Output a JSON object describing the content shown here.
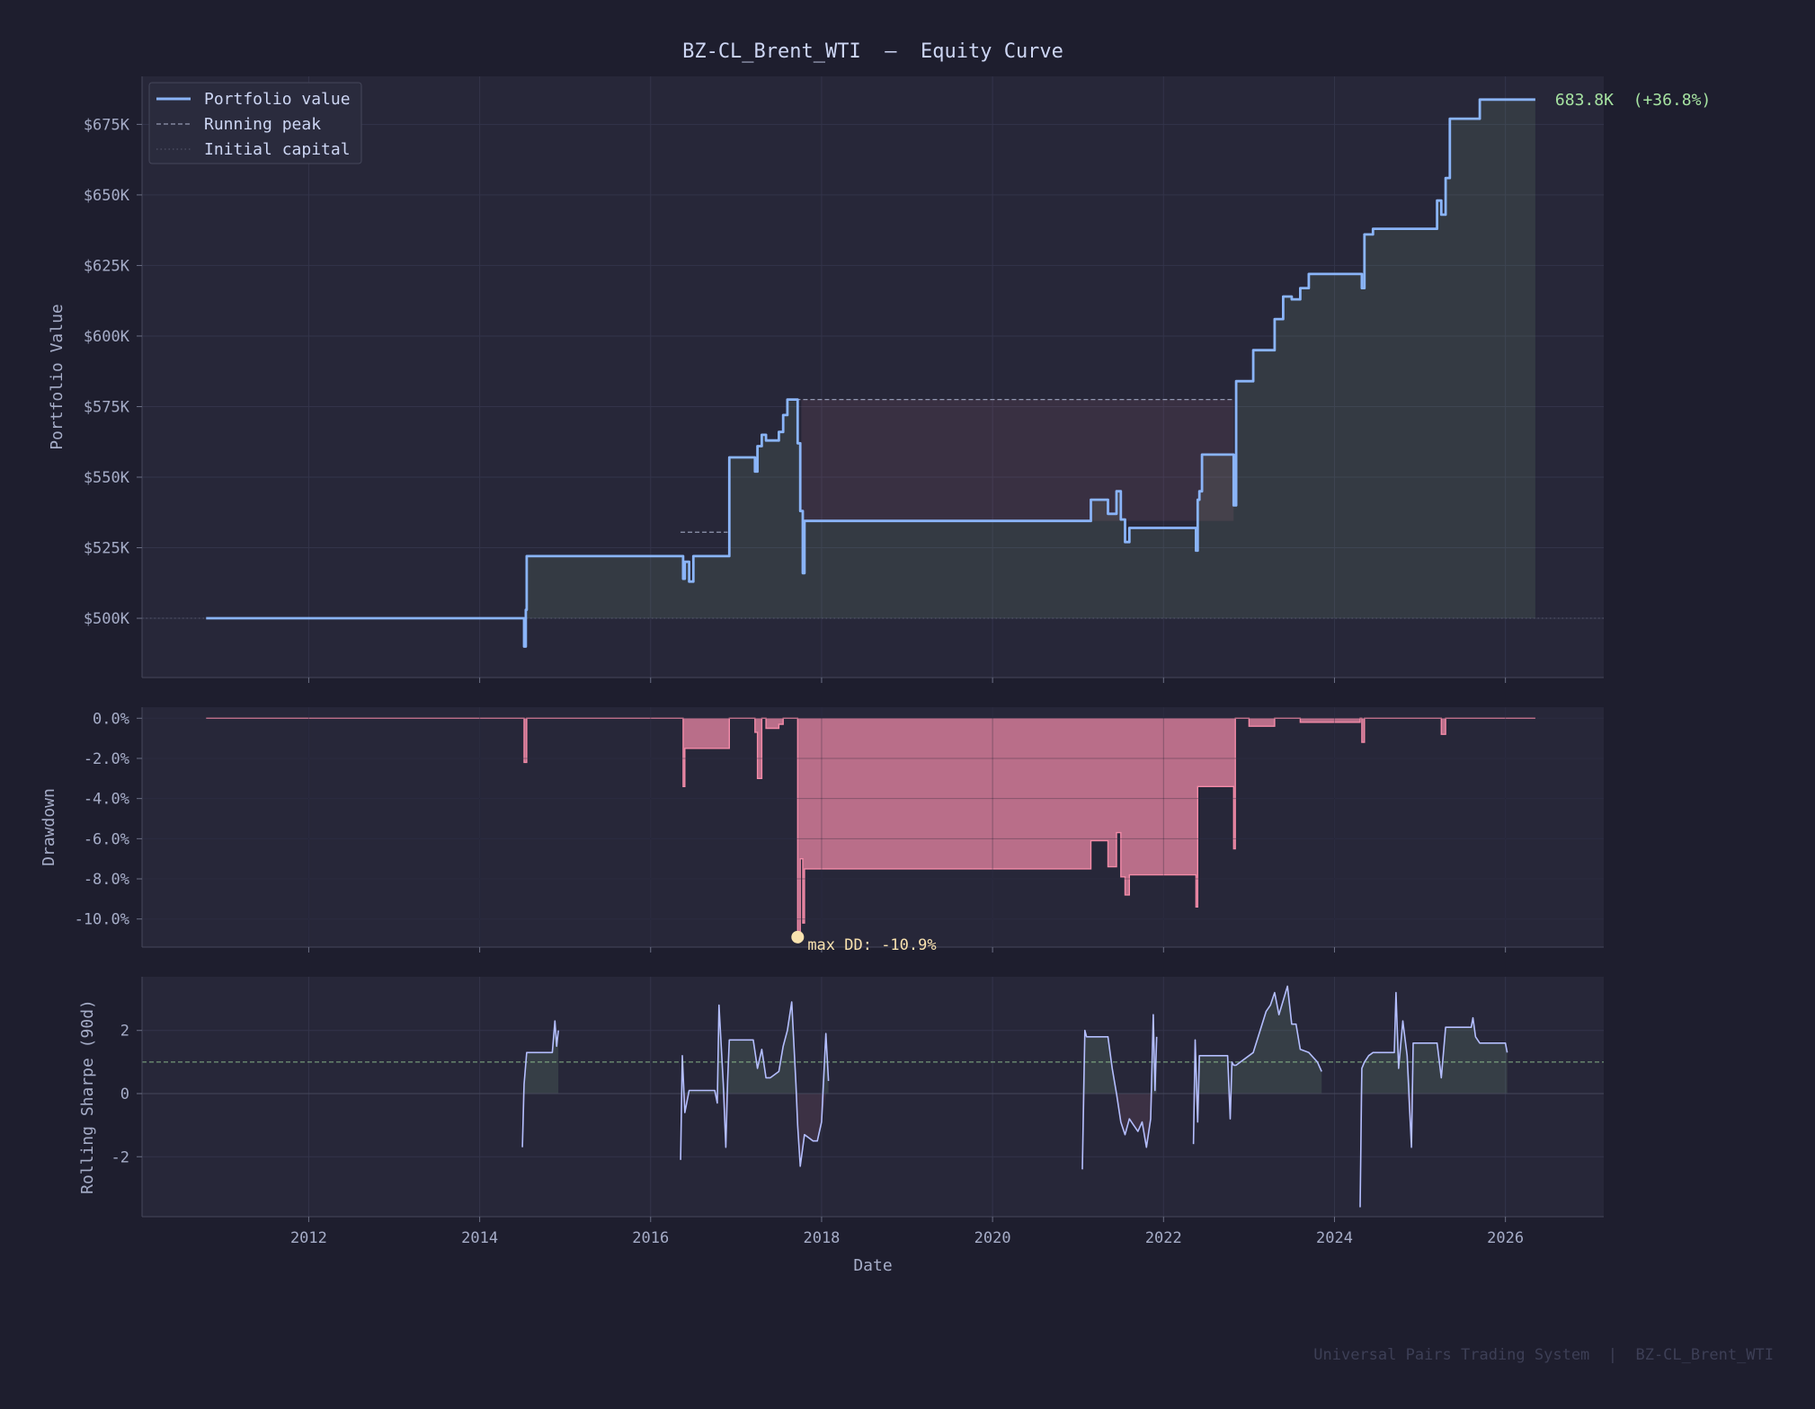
{
  "title": "BZ-CL_Brent_WTI  —  Equity Curve",
  "footer": "Universal Pairs Trading System  |  BZ-CL_Brent_WTI",
  "colors": {
    "background": "#1e1e2e",
    "panel": "#272739",
    "equity_line": "#8ab4f8",
    "drawdown": "#f38ba8",
    "sharpe_line": "#b4befe",
    "positive_label": "#a6e3a1",
    "annotation": "#f9e2af",
    "text": "#cdd6f4",
    "muted": "#a6adc8"
  },
  "chart_data": [
    {
      "type": "line",
      "panel": "equity",
      "ylabel": "Portfolio Value",
      "ylim": [
        479000,
        692000
      ],
      "yticks": [
        500000,
        525000,
        550000,
        575000,
        600000,
        625000,
        650000,
        675000
      ],
      "ytick_labels": [
        "$500K",
        "$525K",
        "$550K",
        "$575K",
        "$600K",
        "$625K",
        "$650K",
        "$675K"
      ],
      "legend": [
        "Portfolio value",
        "Running peak",
        "Initial capital"
      ],
      "legend_position": "top-left",
      "initial_capital": 500000,
      "end_label": "683.8K  (+36.8%)",
      "series": [
        {
          "name": "Portfolio value",
          "x": [
            2010.8,
            2014.5,
            2014.52,
            2014.54,
            2014.55,
            2014.56,
            2016.35,
            2016.38,
            2016.4,
            2016.45,
            2016.5,
            2016.9,
            2016.92,
            2017.2,
            2017.22,
            2017.25,
            2017.3,
            2017.35,
            2017.5,
            2017.55,
            2017.6,
            2017.7,
            2017.72,
            2017.75,
            2017.78,
            2017.8,
            2017.85,
            2021.1,
            2021.15,
            2021.3,
            2021.35,
            2021.45,
            2021.5,
            2021.55,
            2021.6,
            2021.65,
            2022.35,
            2022.38,
            2022.4,
            2022.42,
            2022.45,
            2022.8,
            2022.82,
            2022.85,
            2022.9,
            2023.05,
            2023.1,
            2023.3,
            2023.4,
            2023.5,
            2023.6,
            2023.7,
            2023.9,
            2024.3,
            2024.32,
            2024.35,
            2024.45,
            2024.9,
            2025.2,
            2025.25,
            2025.3,
            2025.35,
            2025.65,
            2025.7,
            2026.35
          ],
          "y": [
            500000,
            500000,
            490000,
            503000,
            522000,
            522000,
            522000,
            514000,
            520000,
            513000,
            522000,
            522000,
            557000,
            557000,
            552000,
            561000,
            565000,
            563000,
            566000,
            572000,
            577500,
            577500,
            562000,
            538000,
            516000,
            534500,
            534500,
            534500,
            542000,
            542000,
            537000,
            545000,
            535000,
            527000,
            532000,
            532000,
            532000,
            524000,
            542000,
            545000,
            558000,
            558000,
            540000,
            584000,
            584000,
            595000,
            595000,
            606000,
            614000,
            613000,
            617000,
            622000,
            622000,
            622000,
            617000,
            636000,
            638000,
            638000,
            648000,
            643000,
            656000,
            677000,
            677000,
            683800,
            683800
          ]
        },
        {
          "name": "Running peak",
          "x": [
            2016.35,
            2016.9,
            2017.7,
            2022.82
          ],
          "y": [
            530500,
            530500,
            577500,
            577500
          ]
        }
      ]
    },
    {
      "type": "area",
      "panel": "drawdown",
      "ylabel": "Drawdown",
      "ylim": [
        -11.4,
        0.55
      ],
      "yticks": [
        0,
        -2,
        -4,
        -6,
        -8,
        -10
      ],
      "ytick_labels": [
        "0.0%",
        "-2.0%",
        "-4.0%",
        "-6.0%",
        "-8.0%",
        "-10.0%"
      ],
      "annotation": "max DD: -10.9%",
      "max_drawdown_point": {
        "x": 2017.72,
        "y": -10.9
      },
      "series": [
        {
          "name": "Drawdown",
          "x": [
            2010.8,
            2014.5,
            2014.52,
            2014.55,
            2014.56,
            2016.35,
            2016.38,
            2016.4,
            2016.45,
            2016.5,
            2016.9,
            2016.92,
            2017.2,
            2017.22,
            2017.25,
            2017.3,
            2017.35,
            2017.5,
            2017.55,
            2017.7,
            2017.72,
            2017.75,
            2017.78,
            2017.8,
            2017.85,
            2021.1,
            2021.15,
            2021.3,
            2021.35,
            2021.45,
            2021.5,
            2021.55,
            2021.6,
            2021.65,
            2022.35,
            2022.38,
            2022.4,
            2022.45,
            2022.8,
            2022.82,
            2022.84,
            2023.0,
            2023.3,
            2023.6,
            2024.3,
            2024.32,
            2024.35,
            2025.2,
            2025.25,
            2025.3,
            2026.35
          ],
          "y": [
            0,
            0,
            -2.2,
            0,
            0,
            0,
            -3.4,
            -1.5,
            -1.5,
            -1.5,
            -1.5,
            0,
            0,
            -0.7,
            -3,
            0,
            -0.5,
            -0.3,
            0,
            0,
            -10.9,
            -7,
            -10.2,
            -7.5,
            -7.5,
            -7.5,
            -6.1,
            -6.1,
            -7.4,
            -5.7,
            -7.9,
            -8.8,
            -7.8,
            -7.8,
            -7.8,
            -9.4,
            -3.4,
            -3.4,
            -3.4,
            -6.5,
            0,
            -0.4,
            0,
            -0.2,
            0,
            -1.2,
            0,
            0,
            -0.8,
            0,
            0
          ]
        }
      ]
    },
    {
      "type": "line",
      "panel": "sharpe",
      "ylabel": "Rolling Sharpe (90d)",
      "xlabel": "Date",
      "ylim": [
        -3.9,
        3.7
      ],
      "yticks": [
        2,
        0,
        -2
      ],
      "ytick_labels": [
        "2",
        "0",
        "-2"
      ],
      "reference_line": 1,
      "xlim": [
        2010.05,
        2027.15
      ],
      "xticks": [
        2012,
        2014,
        2016,
        2018,
        2020,
        2022,
        2024,
        2026
      ],
      "xtick_labels": [
        "2012",
        "2014",
        "2016",
        "2018",
        "2020",
        "2022",
        "2024",
        "2026"
      ],
      "series": [
        {
          "name": "Rolling Sharpe (90d)",
          "segments": [
            {
              "x": [
                2014.5,
                2014.52,
                2014.55,
                2014.6,
                2014.85,
                2014.88,
                2014.9,
                2014.92
              ],
              "y": [
                -1.7,
                0.3,
                1.3,
                1.3,
                1.3,
                2.3,
                1.5,
                2.0
              ]
            },
            {
              "x": [
                2016.35,
                2016.37,
                2016.4,
                2016.45,
                2016.5,
                2016.55,
                2016.75,
                2016.78,
                2016.8,
                2016.85,
                2016.88,
                2016.9,
                2016.92,
                2016.95,
                2017.2,
                2017.25,
                2017.3,
                2017.35,
                2017.4,
                2017.5,
                2017.55,
                2017.6,
                2017.65,
                2017.7,
                2017.72,
                2017.75,
                2017.8,
                2017.85,
                2017.9,
                2017.95,
                2018.0,
                2018.05,
                2018.08
              ],
              "y": [
                -2.1,
                1.2,
                -0.6,
                0.1,
                0.1,
                0.1,
                0.1,
                -0.3,
                2.8,
                0.3,
                -1.7,
                0.4,
                1.7,
                1.7,
                1.7,
                0.8,
                1.4,
                0.5,
                0.5,
                0.7,
                1.5,
                2.0,
                2.9,
                0.3,
                -1.0,
                -2.3,
                -1.3,
                -1.4,
                -1.5,
                -1.5,
                -0.9,
                1.9,
                0.4
              ]
            },
            {
              "x": [
                2021.05,
                2021.08,
                2021.1,
                2021.15,
                2021.35,
                2021.4,
                2021.45,
                2021.5,
                2021.55,
                2021.6,
                2021.65,
                2021.7,
                2021.75,
                2021.8,
                2021.85,
                2021.88,
                2021.9,
                2021.92
              ],
              "y": [
                -2.4,
                2.0,
                1.8,
                1.8,
                1.8,
                0.8,
                0.0,
                -0.9,
                -1.3,
                -0.8,
                -1.0,
                -1.2,
                -0.9,
                -1.7,
                -0.8,
                2.5,
                0.1,
                1.8
              ]
            },
            {
              "x": [
                2022.35,
                2022.37,
                2022.4,
                2022.42,
                2022.45,
                2022.75,
                2022.78,
                2022.8,
                2022.82,
                2022.85,
                2023.0,
                2023.05,
                2023.2,
                2023.25,
                2023.3,
                2023.35,
                2023.45,
                2023.5,
                2023.55,
                2023.6,
                2023.7,
                2023.8,
                2023.85
              ],
              "y": [
                -1.6,
                1.7,
                -0.9,
                1.2,
                1.2,
                1.2,
                -0.8,
                1.0,
                0.9,
                0.9,
                1.2,
                1.3,
                2.6,
                2.8,
                3.2,
                2.5,
                3.4,
                2.2,
                2.2,
                1.4,
                1.3,
                1.0,
                0.7
              ]
            },
            {
              "x": [
                2024.3,
                2024.32,
                2024.35,
                2024.4,
                2024.45,
                2024.7,
                2024.72,
                2024.75,
                2024.8,
                2024.85,
                2024.9,
                2024.92,
                2024.95,
                2025.2,
                2025.25,
                2025.3,
                2025.4,
                2025.6,
                2025.62,
                2025.65,
                2025.7,
                2026.0,
                2026.02
              ],
              "y": [
                -3.6,
                0.8,
                1.0,
                1.2,
                1.3,
                1.3,
                3.2,
                0.8,
                2.3,
                1.2,
                -1.7,
                1.6,
                1.6,
                1.6,
                0.5,
                2.1,
                2.1,
                2.1,
                2.4,
                1.8,
                1.6,
                1.6,
                1.3
              ]
            }
          ]
        }
      ]
    }
  ]
}
